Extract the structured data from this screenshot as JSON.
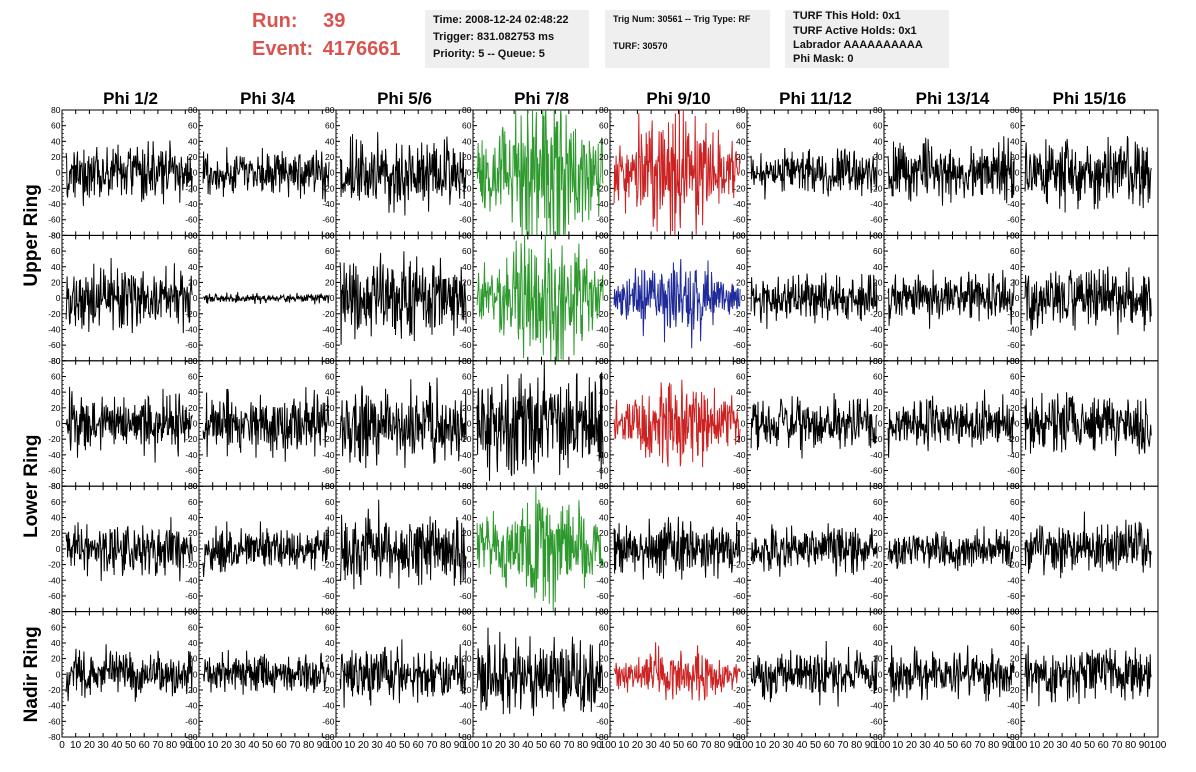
{
  "header": {
    "run_label": "Run:",
    "run_value": "39",
    "event_label": "Event:",
    "event_value": "4176661",
    "info_box_1": {
      "time": "Time: 2008-12-24 02:48:22",
      "trigger": "Trigger: 831.082753 ms",
      "priority": "Priority: 5 -- Queue: 5"
    },
    "info_box_2": {
      "trig": "Trig Num: 30561 -- Trig Type: RF",
      "turf": "TURF: 30570"
    },
    "info_box_3": {
      "hold": "TURF This Hold: 0x1",
      "active": "TURF Active Holds: 0x1",
      "labrador": "Labrador AAAAAAAAAA",
      "phimask": "Phi Mask: 0"
    },
    "accent_color": "#d9534f",
    "box_color": "#efefef"
  },
  "chart_data": {
    "type": "line",
    "column_titles": [
      "Phi 1/2",
      "Phi 3/4",
      "Phi 5/6",
      "Phi 7/8",
      "Phi 9/10",
      "Phi 11/12",
      "Phi 13/14",
      "Phi 15/16"
    ],
    "row_group_titles": [
      "Upper Ring",
      "Lower Ring",
      "Nadir Ring"
    ],
    "rows": 5,
    "ylim": [
      -80,
      80
    ],
    "y_ticks": [
      -80,
      -60,
      -40,
      -20,
      0,
      20,
      40,
      60,
      80
    ],
    "xlim": [
      0,
      100
    ],
    "x_tick_labels_last_row": [
      "0",
      "10",
      "20",
      "30",
      "40",
      "50",
      "60",
      "70",
      "80",
      "90",
      "100"
    ],
    "series_colors": {
      "normal": "#000000",
      "green": "#2e9a2e",
      "red": "#cc2222",
      "blue": "#1f2b9a"
    },
    "panel_colors": [
      [
        "normal",
        "normal",
        "normal",
        "green",
        "red",
        "normal",
        "normal",
        "normal"
      ],
      [
        "normal",
        "normal",
        "normal",
        "green",
        "blue",
        "normal",
        "normal",
        "normal"
      ],
      [
        "normal",
        "normal",
        "normal",
        "normal",
        "red",
        "normal",
        "normal",
        "normal"
      ],
      [
        "normal",
        "normal",
        "normal",
        "green",
        "normal",
        "normal",
        "normal",
        "normal"
      ],
      [
        "normal",
        "normal",
        "normal",
        "normal",
        "red",
        "normal",
        "normal",
        "normal"
      ]
    ],
    "panel_amplitude": [
      [
        18,
        14,
        22,
        38,
        30,
        14,
        18,
        20
      ],
      [
        20,
        3,
        24,
        32,
        18,
        14,
        16,
        18
      ],
      [
        18,
        18,
        22,
        30,
        22,
        16,
        16,
        18
      ],
      [
        16,
        14,
        24,
        28,
        16,
        14,
        12,
        16
      ],
      [
        14,
        12,
        16,
        24,
        14,
        16,
        14,
        16
      ]
    ],
    "samples_per_trace": 256
  }
}
